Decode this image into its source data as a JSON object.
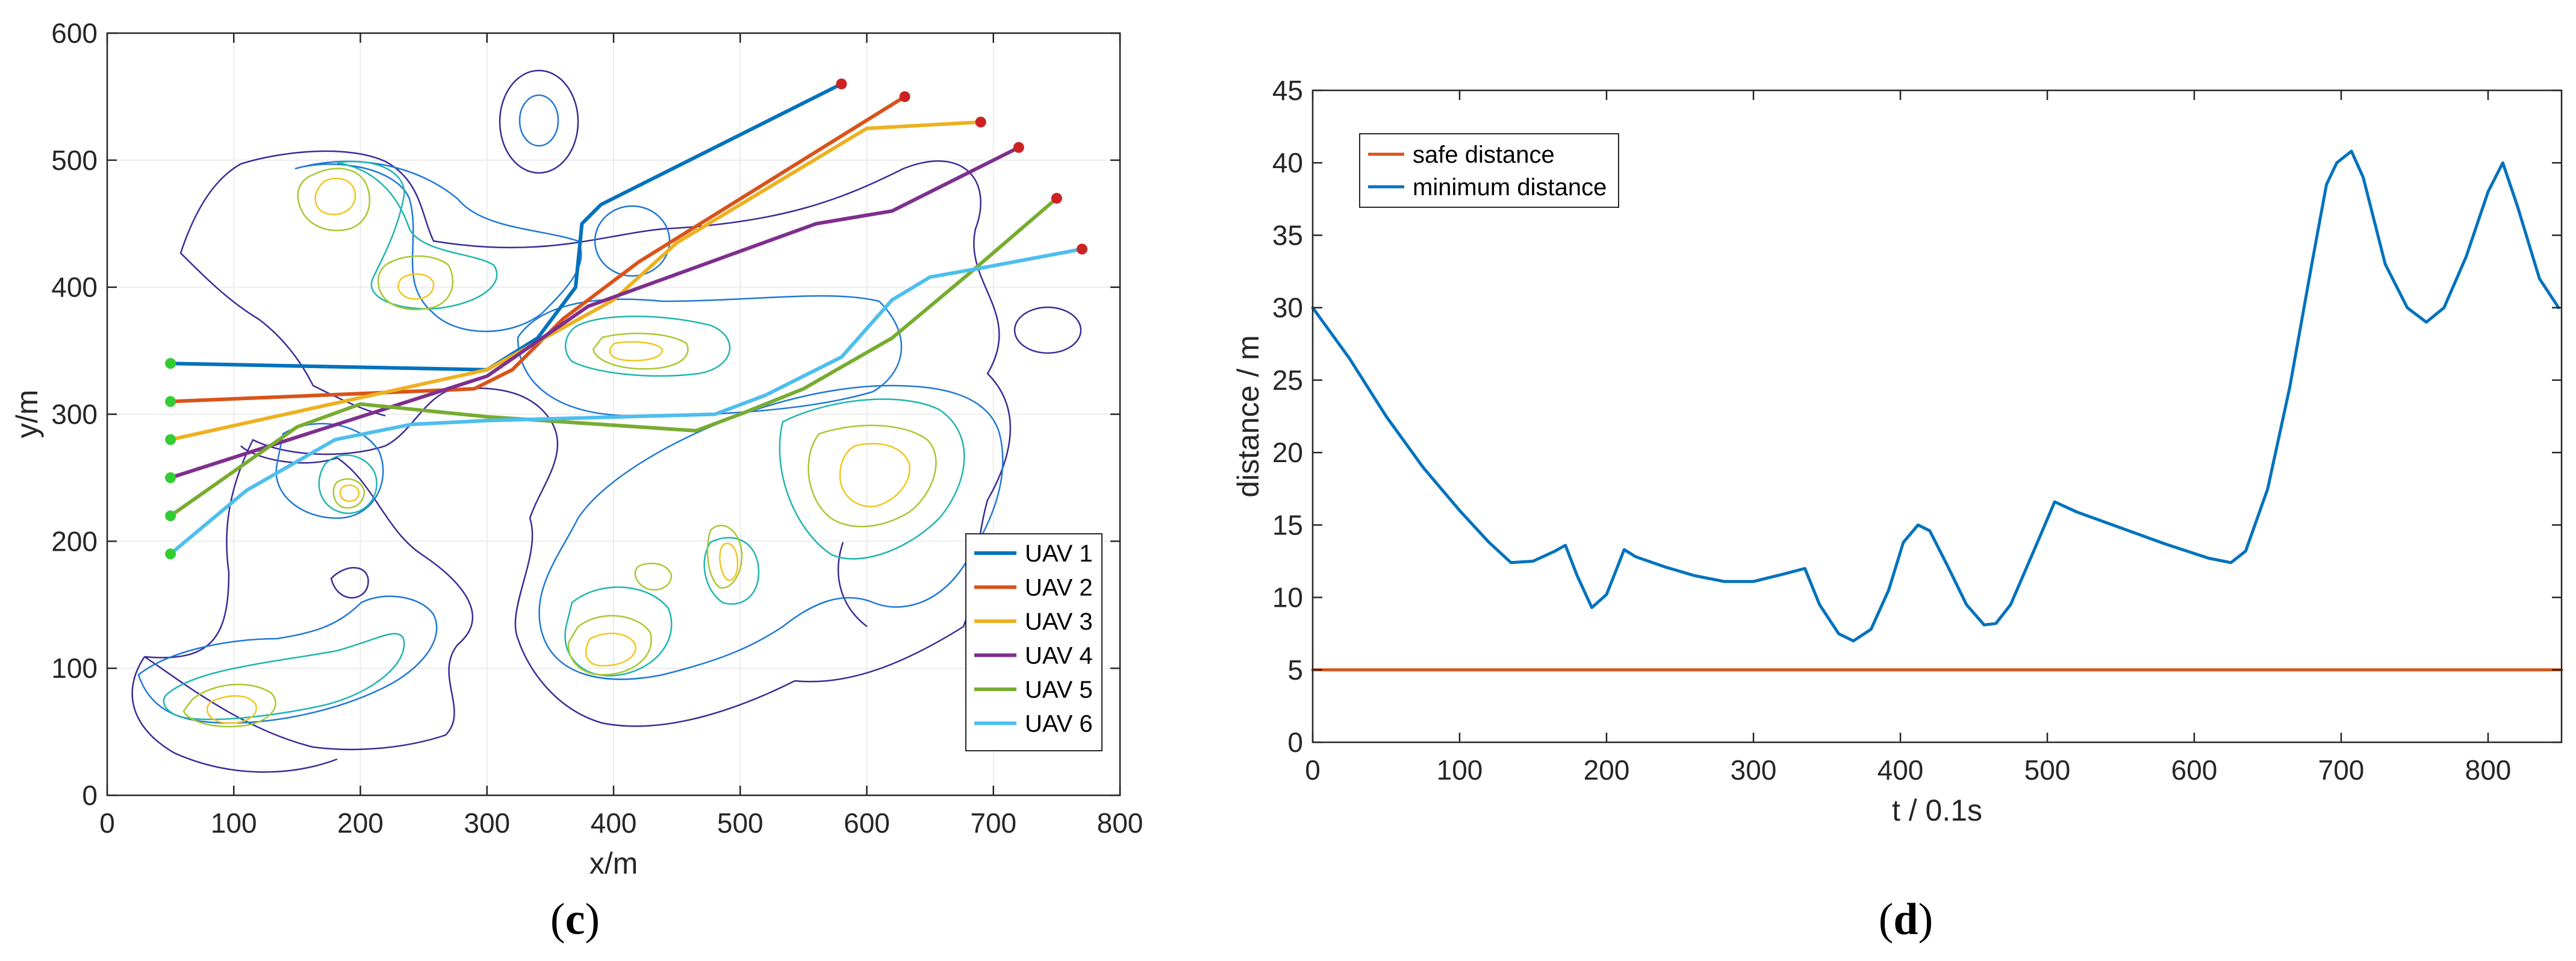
{
  "chart_data": [
    {
      "panel": "c",
      "type": "line",
      "caption": {
        "open": "(",
        "letter": "c",
        "close": ")"
      },
      "xlabel": "x/m",
      "ylabel": "y/m",
      "xlim": [
        0,
        800
      ],
      "ylim": [
        0,
        600
      ],
      "xticks": [
        0,
        100,
        200,
        300,
        400,
        500,
        600,
        700,
        800
      ],
      "yticks": [
        0,
        100,
        200,
        300,
        400,
        500,
        600
      ],
      "grid": true,
      "legend_position": "bottom-right",
      "background": "contour plot of terrain peaks",
      "series": [
        {
          "name": "UAV 1",
          "color": "#0072BD",
          "points": [
            [
              50,
              340
            ],
            [
              300,
              335
            ],
            [
              340,
              360
            ],
            [
              370,
              400
            ],
            [
              375,
              450
            ],
            [
              390,
              465
            ],
            [
              580,
              560
            ]
          ]
        },
        {
          "name": "UAV 2",
          "color": "#D95319",
          "points": [
            [
              50,
              310
            ],
            [
              290,
              320
            ],
            [
              320,
              335
            ],
            [
              360,
              375
            ],
            [
              420,
              420
            ],
            [
              630,
              550
            ]
          ]
        },
        {
          "name": "UAV 3",
          "color": "#EDB120",
          "points": [
            [
              50,
              280
            ],
            [
              300,
              335
            ],
            [
              400,
              390
            ],
            [
              450,
              435
            ],
            [
              600,
              525
            ],
            [
              690,
              530
            ]
          ]
        },
        {
          "name": "UAV 4",
          "color": "#7E2F8E",
          "points": [
            [
              50,
              250
            ],
            [
              300,
              330
            ],
            [
              380,
              385
            ],
            [
              560,
              450
            ],
            [
              620,
              460
            ],
            [
              720,
              510
            ]
          ]
        },
        {
          "name": "UAV 5",
          "color": "#77AC30",
          "points": [
            [
              50,
              220
            ],
            [
              150,
              290
            ],
            [
              200,
              308
            ],
            [
              300,
              298
            ],
            [
              465,
              287
            ],
            [
              500,
              300
            ],
            [
              550,
              320
            ],
            [
              620,
              360
            ],
            [
              680,
              410
            ],
            [
              750,
              470
            ]
          ]
        },
        {
          "name": "UAV 6",
          "color": "#4DBEEE",
          "points": [
            [
              50,
              190
            ],
            [
              110,
              240
            ],
            [
              180,
              280
            ],
            [
              240,
              292
            ],
            [
              300,
              295
            ],
            [
              480,
              300
            ],
            [
              520,
              315
            ],
            [
              580,
              345
            ],
            [
              620,
              390
            ],
            [
              650,
              408
            ],
            [
              690,
              415
            ],
            [
              770,
              430
            ]
          ]
        }
      ],
      "start_marker_color": "#33CC33",
      "end_marker_color": "#CC2222"
    },
    {
      "panel": "d",
      "type": "line",
      "caption": {
        "open": "(",
        "letter": "d",
        "close": ")"
      },
      "xlabel": "t / 0.1s",
      "ylabel": "distance / m",
      "xlim": [
        0,
        850
      ],
      "ylim": [
        0,
        45
      ],
      "xticks": [
        0,
        100,
        200,
        300,
        400,
        500,
        600,
        700,
        800
      ],
      "yticks": [
        0,
        5,
        10,
        15,
        20,
        25,
        30,
        35,
        40,
        45
      ],
      "grid": false,
      "legend_position": "top-left",
      "series": [
        {
          "name": "safe distance",
          "color": "#D95319",
          "points": [
            [
              0,
              5
            ],
            [
              850,
              5
            ]
          ]
        },
        {
          "name": "minimum distance",
          "color": "#0072BD",
          "points": [
            [
              0,
              30
            ],
            [
              25,
              26.5
            ],
            [
              50,
              22.5
            ],
            [
              75,
              19
            ],
            [
              100,
              16
            ],
            [
              120,
              13.8
            ],
            [
              135,
              12.4
            ],
            [
              150,
              12.5
            ],
            [
              165,
              13.2
            ],
            [
              172,
              13.6
            ],
            [
              180,
              11.5
            ],
            [
              190,
              9.3
            ],
            [
              200,
              10.2
            ],
            [
              207,
              12
            ],
            [
              212,
              13.3
            ],
            [
              220,
              12.8
            ],
            [
              240,
              12.1
            ],
            [
              260,
              11.5
            ],
            [
              280,
              11.1
            ],
            [
              300,
              11.1
            ],
            [
              320,
              11.6
            ],
            [
              335,
              12
            ],
            [
              345,
              9.5
            ],
            [
              358,
              7.5
            ],
            [
              368,
              7
            ],
            [
              380,
              7.8
            ],
            [
              392,
              10.5
            ],
            [
              402,
              13.8
            ],
            [
              412,
              15
            ],
            [
              420,
              14.6
            ],
            [
              432,
              12.2
            ],
            [
              445,
              9.5
            ],
            [
              457,
              8.1
            ],
            [
              465,
              8.2
            ],
            [
              475,
              9.5
            ],
            [
              492,
              13.5
            ],
            [
              505,
              16.6
            ],
            [
              520,
              15.9
            ],
            [
              550,
              14.8
            ],
            [
              580,
              13.7
            ],
            [
              610,
              12.7
            ],
            [
              625,
              12.4
            ],
            [
              635,
              13.2
            ],
            [
              650,
              17.5
            ],
            [
              665,
              24.5
            ],
            [
              680,
              33
            ],
            [
              690,
              38.5
            ],
            [
              697,
              40
            ],
            [
              707,
              40.8
            ],
            [
              715,
              39
            ],
            [
              730,
              33
            ],
            [
              745,
              30
            ],
            [
              758,
              29
            ],
            [
              770,
              30
            ],
            [
              785,
              33.5
            ],
            [
              800,
              38
            ],
            [
              810,
              40
            ],
            [
              820,
              37
            ],
            [
              835,
              32
            ],
            [
              848,
              30
            ]
          ]
        }
      ]
    }
  ]
}
